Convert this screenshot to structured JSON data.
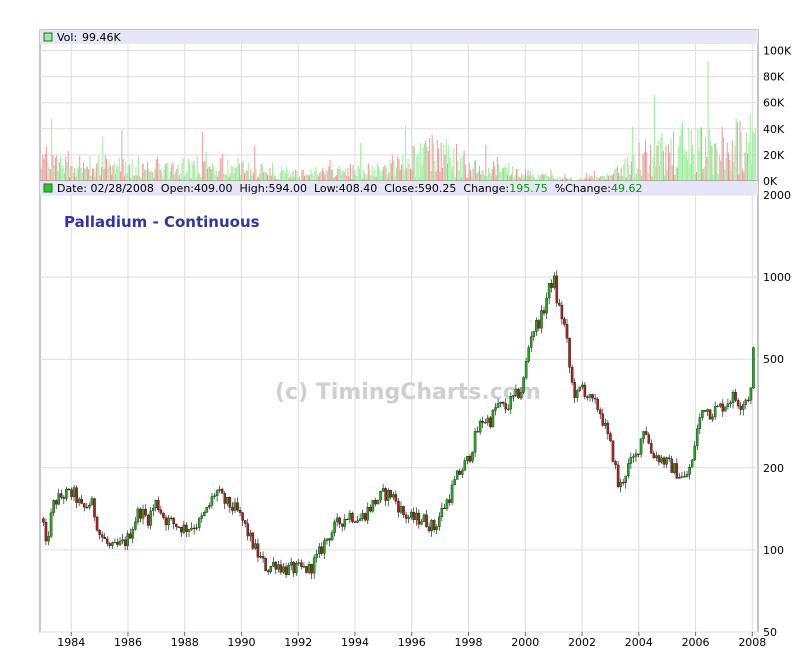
{
  "chart_data": {
    "type": "candlestick",
    "title": "Palladium - Continuous",
    "watermark": "(c) TimingCharts.com",
    "volume_panel": {
      "legend_label": "Vol:",
      "legend_value": "99.46K",
      "ylim": [
        0,
        105000
      ],
      "y_ticks": [
        0,
        20000,
        40000,
        60000,
        80000,
        100000
      ],
      "y_tick_labels": [
        "0K",
        "20K",
        "40K",
        "60K",
        "80K",
        "100K"
      ],
      "up_color": "#99ee99",
      "down_color": "#ee9999"
    },
    "price_panel": {
      "scale": "log",
      "ylim": [
        50,
        2000
      ],
      "y_ticks": [
        50,
        100,
        200,
        500,
        1000,
        2000
      ],
      "y_tick_labels": [
        "50",
        "100",
        "200",
        "500",
        "1000",
        "2000"
      ],
      "up_color": "#22aa22",
      "down_color": "#aa2222"
    },
    "header": {
      "date_label": "Date:",
      "date": "02/28/2008",
      "open_label": "Open:",
      "open": "409.00",
      "high_label": "High:",
      "high": "594.00",
      "low_label": "Low:",
      "low": "408.40",
      "close_label": "Close:",
      "close": "590.25",
      "change_label": "Change:",
      "change": "195.75",
      "pct_change_label": "%Change:",
      "pct_change": "49.62",
      "change_color": "#009900"
    },
    "x_axis": {
      "xlim": [
        1982.9,
        2008.2
      ],
      "ticks": [
        1984,
        1986,
        1988,
        1990,
        1992,
        1994,
        1996,
        1998,
        2000,
        2002,
        2004,
        2006,
        2008
      ],
      "tick_labels": [
        "1984",
        "1986",
        "1988",
        "1990",
        "1992",
        "1994",
        "1996",
        "1998",
        "2000",
        "2002",
        "2004",
        "2006",
        "2008"
      ]
    },
    "price_path": [
      [
        1983.0,
        130
      ],
      [
        1983.1,
        100
      ],
      [
        1983.4,
        150
      ],
      [
        1983.8,
        160
      ],
      [
        1984.1,
        160
      ],
      [
        1984.4,
        140
      ],
      [
        1984.7,
        150
      ],
      [
        1985.0,
        115
      ],
      [
        1985.4,
        100
      ],
      [
        1985.8,
        105
      ],
      [
        1986.0,
        110
      ],
      [
        1986.4,
        140
      ],
      [
        1986.7,
        130
      ],
      [
        1987.0,
        150
      ],
      [
        1987.3,
        130
      ],
      [
        1987.6,
        125
      ],
      [
        1988.0,
        120
      ],
      [
        1988.5,
        125
      ],
      [
        1988.8,
        140
      ],
      [
        1989.1,
        165
      ],
      [
        1989.4,
        150
      ],
      [
        1989.8,
        140
      ],
      [
        1990.0,
        130
      ],
      [
        1990.3,
        110
      ],
      [
        1990.6,
        95
      ],
      [
        1990.9,
        85
      ],
      [
        1991.2,
        90
      ],
      [
        1991.5,
        85
      ],
      [
        1992.0,
        85
      ],
      [
        1992.4,
        85
      ],
      [
        1992.7,
        95
      ],
      [
        1993.0,
        110
      ],
      [
        1993.4,
        125
      ],
      [
        1993.8,
        135
      ],
      [
        1994.2,
        130
      ],
      [
        1994.7,
        150
      ],
      [
        1995.0,
        160
      ],
      [
        1995.3,
        160
      ],
      [
        1995.7,
        135
      ],
      [
        1996.0,
        130
      ],
      [
        1996.4,
        130
      ],
      [
        1996.8,
        120
      ],
      [
        1997.0,
        135
      ],
      [
        1997.3,
        155
      ],
      [
        1997.6,
        185
      ],
      [
        1998.0,
        215
      ],
      [
        1998.3,
        270
      ],
      [
        1998.5,
        300
      ],
      [
        1998.8,
        300
      ],
      [
        1999.0,
        340
      ],
      [
        1999.3,
        330
      ],
      [
        1999.6,
        360
      ],
      [
        1999.9,
        390
      ],
      [
        2000.0,
        460
      ],
      [
        2000.2,
        620
      ],
      [
        2000.4,
        670
      ],
      [
        2000.6,
        720
      ],
      [
        2000.8,
        880
      ],
      [
        2001.0,
        1000
      ],
      [
        2001.1,
        830
      ],
      [
        2001.4,
        650
      ],
      [
        2001.6,
        420
      ],
      [
        2001.8,
        360
      ],
      [
        2002.0,
        400
      ],
      [
        2002.3,
        350
      ],
      [
        2002.6,
        330
      ],
      [
        2002.9,
        260
      ],
      [
        2003.1,
        220
      ],
      [
        2003.3,
        165
      ],
      [
        2003.6,
        200
      ],
      [
        2003.9,
        220
      ],
      [
        2004.1,
        260
      ],
      [
        2004.2,
        290
      ],
      [
        2004.4,
        230
      ],
      [
        2004.8,
        215
      ],
      [
        2005.2,
        200
      ],
      [
        2005.6,
        180
      ],
      [
        2005.9,
        210
      ],
      [
        2006.0,
        260
      ],
      [
        2006.3,
        340
      ],
      [
        2006.5,
        320
      ],
      [
        2006.8,
        330
      ],
      [
        2007.0,
        340
      ],
      [
        2007.3,
        365
      ],
      [
        2007.6,
        345
      ],
      [
        2007.9,
        370
      ],
      [
        2008.0,
        400
      ],
      [
        2008.05,
        560
      ],
      [
        2008.1,
        590
      ]
    ],
    "volume_path": [
      [
        1983.0,
        18000
      ],
      [
        1984.0,
        15000
      ],
      [
        1986.0,
        12000
      ],
      [
        1988.0,
        12000
      ],
      [
        1989.0,
        16000
      ],
      [
        1990.0,
        11000
      ],
      [
        1992.0,
        6000
      ],
      [
        1994.0,
        9000
      ],
      [
        1995.5,
        14000
      ],
      [
        1997.0,
        25000
      ],
      [
        1998.5,
        12000
      ],
      [
        2000.0,
        6000
      ],
      [
        2001.0,
        3000
      ],
      [
        2002.0,
        2000
      ],
      [
        2003.0,
        6000
      ],
      [
        2004.0,
        20000
      ],
      [
        2005.0,
        25000
      ],
      [
        2006.0,
        28000
      ],
      [
        2007.0,
        30000
      ],
      [
        2008.0,
        35000
      ]
    ]
  }
}
